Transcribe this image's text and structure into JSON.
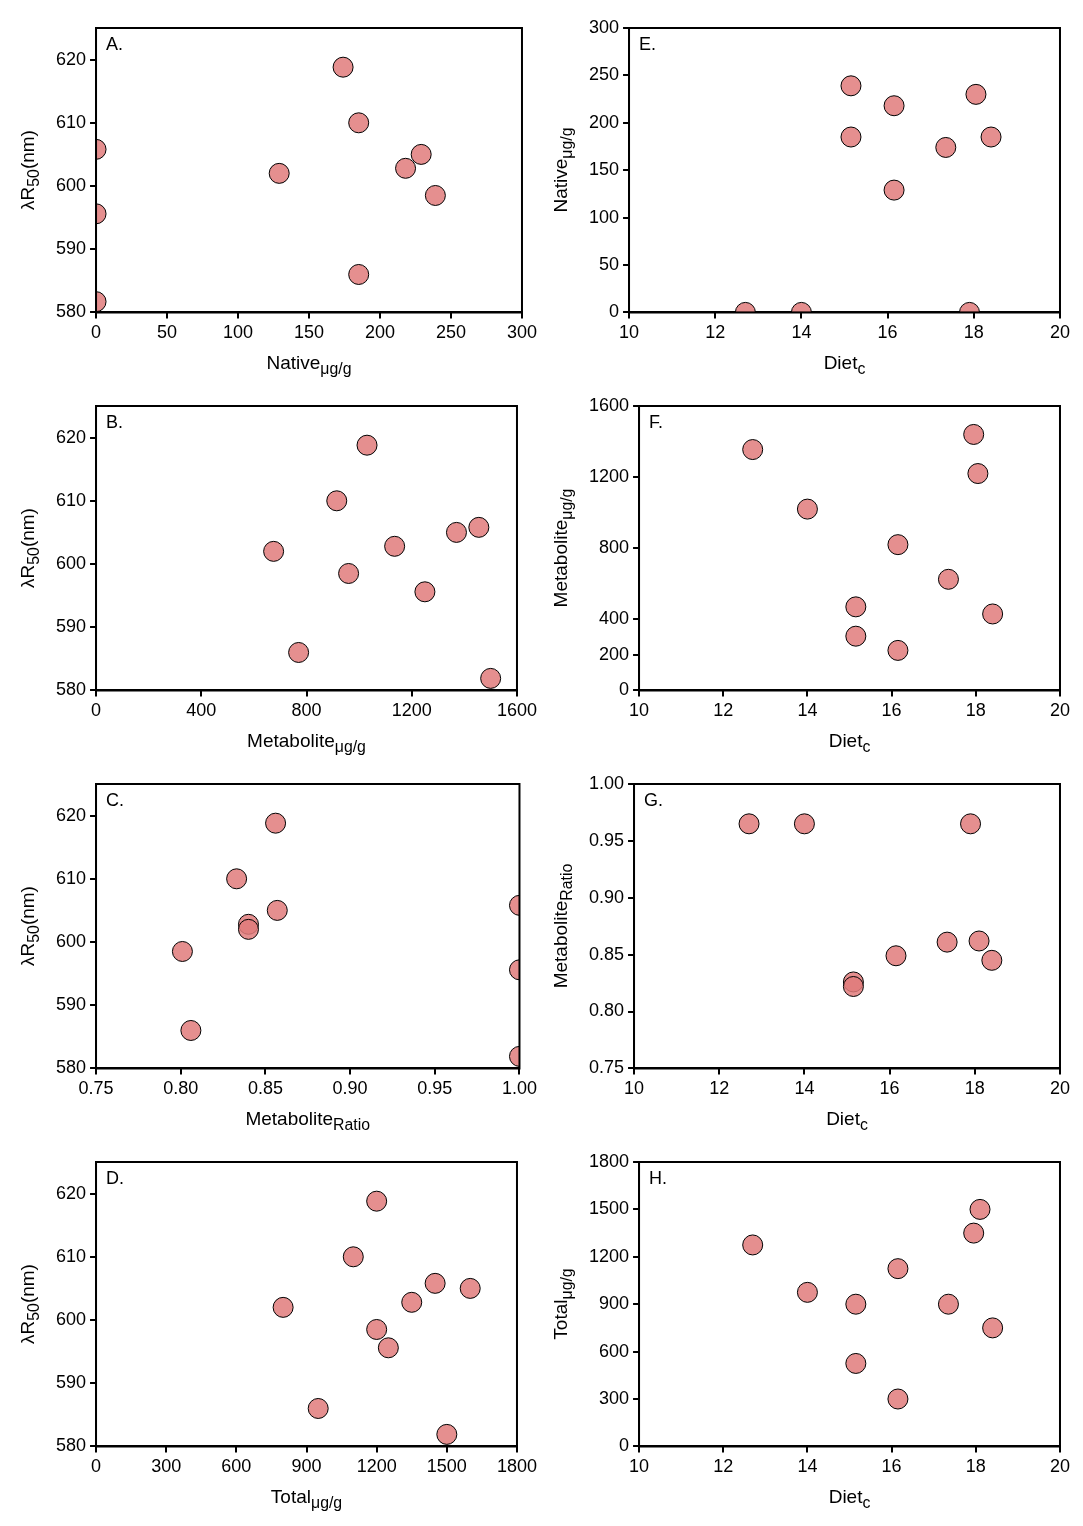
{
  "chart_data": [
    {
      "type": "scatter",
      "title": "A.",
      "xlabel": "Native$_{μg/g}$",
      "ylabel": "λR$_{50}$(nm)",
      "color": "#e07b7b",
      "marker": "circle",
      "x": [
        0,
        0,
        0,
        174,
        185,
        129,
        218,
        229,
        239,
        185
      ],
      "values": [
        605.8,
        595.6,
        581.7,
        618.8,
        610,
        602,
        602.8,
        605,
        598.5,
        586
      ],
      "xlim": [
        0,
        300
      ],
      "xticks": [
        0,
        50,
        100,
        150,
        200,
        250,
        300
      ],
      "ylim": [
        580,
        625
      ],
      "yticks": [
        580,
        590,
        600,
        610,
        620
      ]
    },
    {
      "type": "scatter",
      "title": "E.",
      "xlabel": "Diet$_{c}$",
      "ylabel": "Native$_{μg/g}$",
      "color": "#e07b7b",
      "marker": "circle",
      "x": [
        12.7,
        14,
        17.9,
        15.15,
        16.15,
        18.05,
        15.15,
        17.35,
        18.4,
        16.15
      ],
      "values": [
        0,
        0,
        0,
        239,
        218,
        230,
        185,
        174,
        185,
        129
      ],
      "xlim": [
        10,
        20
      ],
      "xticks": [
        10,
        12,
        14,
        16,
        18,
        20
      ],
      "ylim": [
        0,
        300
      ],
      "yticks": [
        0,
        50,
        100,
        150,
        200,
        250,
        300
      ]
    },
    {
      "type": "scatter",
      "title": "B.",
      "xlabel": "Metabolite$_{μg/g}$",
      "ylabel": "λR$_{50}$(nm)",
      "color": "#e07b7b",
      "marker": "circle",
      "x": [
        1030,
        915,
        675,
        960,
        1135,
        1370,
        1455,
        1250,
        770,
        1500
      ],
      "values": [
        618.8,
        610,
        602,
        598.5,
        602.8,
        605,
        605.8,
        595.6,
        586,
        581.9
      ],
      "xlim": [
        0,
        1600
      ],
      "xticks": [
        0,
        400,
        800,
        1200,
        1600
      ],
      "ylim": [
        580,
        625
      ],
      "yticks": [
        580,
        590,
        600,
        610,
        620
      ]
    },
    {
      "type": "scatter",
      "title": "F.",
      "xlabel": "Diet$_{c}$",
      "ylabel": "Metabolite$_{μg/g}$",
      "color": "#e07b7b",
      "marker": "circle",
      "x": [
        12.7,
        17.95,
        18.05,
        14,
        16.15,
        17.35,
        15.15,
        18.4,
        15.15,
        16.15
      ],
      "values": [
        1355,
        1440,
        1220,
        1020,
        820,
        625,
        470,
        430,
        305,
        225
      ],
      "xlim": [
        10,
        20
      ],
      "xticks": [
        10,
        12,
        14,
        16,
        18,
        20
      ],
      "ylim": [
        0,
        1600
      ],
      "yticks": [
        0,
        200,
        400,
        800,
        1200,
        1600
      ]
    },
    {
      "type": "scatter",
      "title": "C.",
      "xlabel": "Metabolite$_{Ratio}$",
      "ylabel": "λR$_{50}$(nm)",
      "color": "#e07b7b",
      "marker": "circle",
      "x": [
        0.856,
        0.833,
        0.857,
        0.84,
        0.84,
        0.801,
        0.806,
        1.0,
        1.0,
        1.0
      ],
      "values": [
        618.8,
        610,
        605,
        602.8,
        602,
        598.5,
        586,
        605.8,
        595.6,
        581.9
      ],
      "xlim": [
        0.75,
        1
      ],
      "xticks": [
        0.75,
        {
          "value": 0.8,
          "label": "0.80"
        },
        0.85,
        {
          "value": 0.9,
          "label": "0.90"
        },
        0.95,
        {
          "value": 1,
          "label": "1.00"
        }
      ],
      "ylim": [
        580,
        625
      ],
      "yticks": [
        580,
        590,
        600,
        610,
        620
      ]
    },
    {
      "type": "scatter",
      "title": "G.",
      "xlabel": "Diet$_{c}$",
      "ylabel": "Metabolite$_{Ratio}$",
      "color": "#e07b7b",
      "marker": "circle",
      "x": [
        12.7,
        14,
        17.9,
        17.35,
        18.1,
        16.15,
        18.4,
        15.15,
        15.15
      ],
      "values": [
        0.965,
        0.965,
        0.965,
        0.861,
        0.862,
        0.849,
        0.845,
        0.826,
        0.822
      ],
      "xlim": [
        10,
        20
      ],
      "xticks": [
        10,
        12,
        14,
        16,
        18,
        20
      ],
      "ylim": [
        0.75,
        1
      ],
      "yticks": [
        0.75,
        {
          "value": 0.8,
          "label": "0.80"
        },
        0.85,
        {
          "value": 0.9,
          "label": "0.90"
        },
        0.95,
        {
          "value": 1,
          "label": "1.00"
        }
      ]
    },
    {
      "type": "scatter",
      "title": "D.",
      "xlabel": "Total$_{μg/g}$",
      "ylabel": "λR$_{50}$(nm)",
      "color": "#e07b7b",
      "marker": "circle",
      "x": [
        1200,
        1100,
        800,
        1450,
        1600,
        1350,
        1200,
        1250,
        950,
        1500
      ],
      "values": [
        618.8,
        610,
        602,
        605.8,
        605,
        602.8,
        598.5,
        595.6,
        586,
        581.9
      ],
      "xlim": [
        0,
        1800
      ],
      "xticks": [
        0,
        300,
        600,
        900,
        1200,
        1500,
        1800
      ],
      "ylim": [
        580,
        625
      ],
      "yticks": [
        580,
        590,
        600,
        610,
        620
      ]
    },
    {
      "type": "scatter",
      "title": "H.",
      "xlabel": "Diet$_{c}$",
      "ylabel": "Total$_{μg/g}$",
      "color": "#e07b7b",
      "marker": "circle",
      "x": [
        12.7,
        18.1,
        17.95,
        16.15,
        14,
        15.15,
        17.35,
        18.4,
        15.15,
        16.15
      ],
      "values": [
        1275,
        1500,
        1350,
        1125,
        975,
        900,
        900,
        750,
        525,
        300
      ],
      "xlim": [
        10,
        20
      ],
      "xticks": [
        10,
        12,
        14,
        16,
        18,
        20
      ],
      "ylim": [
        0,
        1800
      ],
      "yticks": [
        0,
        300,
        600,
        900,
        1200,
        1500,
        1800
      ]
    }
  ]
}
